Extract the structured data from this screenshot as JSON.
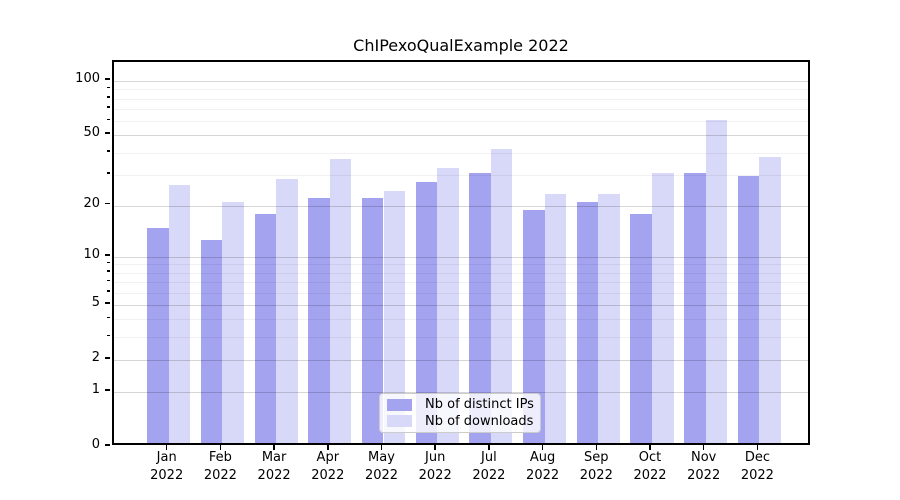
{
  "figure": {
    "background": "#ffffff"
  },
  "chart_data": {
    "type": "bar",
    "title": "ChIPexoQualExample 2022",
    "categories": [
      "Jan 2022",
      "Feb 2022",
      "Mar 2022",
      "Apr 2022",
      "May 2022",
      "Jun 2022",
      "Jul 2022",
      "Aug 2022",
      "Sep 2022",
      "Oct 2022",
      "Nov 2022",
      "Dec 2022"
    ],
    "x_tick_months": [
      "Jan",
      "Feb",
      "Mar",
      "Apr",
      "May",
      "Jun",
      "Jul",
      "Aug",
      "Sep",
      "Oct",
      "Nov",
      "Dec"
    ],
    "x_tick_year": "2022",
    "series": [
      {
        "name": "Nb of distinct IPs",
        "color": "#a3a3f0",
        "values": [
          14,
          12,
          17,
          21,
          21,
          26,
          29,
          18,
          20,
          17,
          29,
          28
        ]
      },
      {
        "name": "Nb of downloads",
        "color": "#d8d8f8",
        "values": [
          25,
          20,
          27,
          35,
          23,
          31,
          40,
          22,
          22,
          29,
          58,
          36
        ]
      }
    ],
    "xlabel": "",
    "ylabel": "",
    "yscale": "log1p",
    "ylim": [
      0,
      128
    ],
    "y_major_ticks": [
      0,
      1,
      2,
      5,
      10,
      20,
      50,
      100
    ],
    "y_minor_ticks": [
      3,
      4,
      6,
      7,
      8,
      9,
      30,
      40,
      60,
      70,
      80,
      90
    ],
    "grid": "on",
    "legend_position": "lower center",
    "axis_color": "#000000",
    "text_color": "#000000",
    "grid_major_color": "#d4d4d4",
    "grid_minor_color": "#efefef"
  }
}
